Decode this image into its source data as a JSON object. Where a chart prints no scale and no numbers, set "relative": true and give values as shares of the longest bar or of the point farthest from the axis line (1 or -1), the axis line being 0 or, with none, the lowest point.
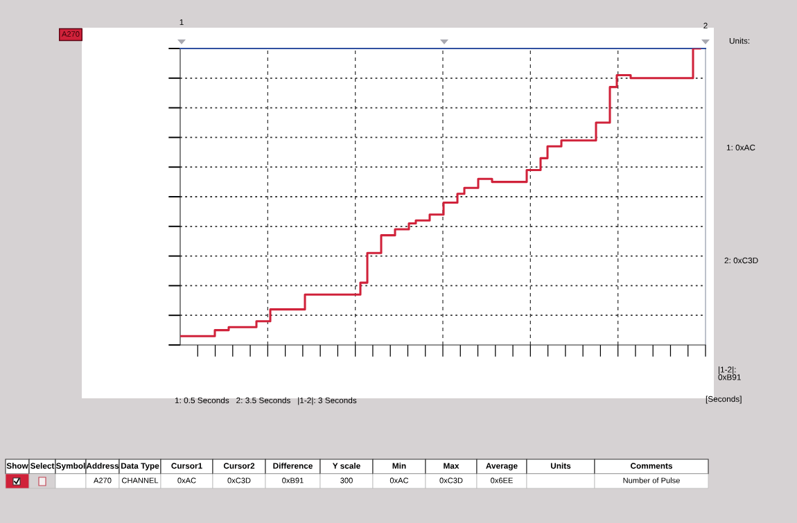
{
  "chart_data": {
    "type": "step",
    "relative": true,
    "grid": true,
    "legend": false,
    "marker": "none",
    "line_style": "solid",
    "tick_labels": false,
    "categories": [
      null,
      null,
      null,
      null,
      null,
      null,
      null,
      null,
      null,
      null,
      null,
      null,
      null,
      null,
      null,
      null,
      null,
      null,
      null,
      null,
      null,
      null,
      null,
      null,
      null,
      null,
      null,
      null,
      null,
      null,
      null,
      null,
      null,
      null,
      null,
      null,
      null,
      null,
      null,
      null,
      null,
      null,
      null,
      null,
      null,
      null,
      null,
      null,
      null,
      null,
      null,
      null,
      null,
      null,
      null,
      null,
      null,
      null,
      null,
      null,
      null,
      null,
      null,
      null,
      null,
      null,
      null,
      null,
      null,
      null,
      null,
      null,
      null,
      null,
      null,
      null
    ],
    "series": [
      {
        "name": "A270",
        "color": "#d0223a",
        "values": [
          0.03,
          0.03,
          0.03,
          0.03,
          0.03,
          0.05,
          0.05,
          0.06,
          0.06,
          0.06,
          0.06,
          0.08,
          0.08,
          0.12,
          0.12,
          0.12,
          0.12,
          0.12,
          0.17,
          0.17,
          0.17,
          0.17,
          0.17,
          0.17,
          0.17,
          0.17,
          0.21,
          0.31,
          0.31,
          0.37,
          0.37,
          0.39,
          0.39,
          0.41,
          0.42,
          0.42,
          0.44,
          0.44,
          0.48,
          0.48,
          0.51,
          0.53,
          0.53,
          0.56,
          0.56,
          0.55,
          0.55,
          0.55,
          0.55,
          0.55,
          0.59,
          0.59,
          0.63,
          0.67,
          0.67,
          0.69,
          0.69,
          0.69,
          0.69,
          0.69,
          0.75,
          0.75,
          0.87,
          0.91,
          0.91,
          0.9,
          0.9,
          0.9,
          0.9,
          0.9,
          0.9,
          0.9,
          0.9,
          0.9,
          1,
          1
        ]
      }
    ],
    "annotations": [
      "1",
      "2",
      "Units:",
      "1: 0xAC",
      "2: 0xC3D",
      "|1-2|:\n0xB91",
      "1: 0.5 Seconds   2: 3.5 Seconds   |1-2|: 3 Seconds",
      "[Seconds]",
      "Show",
      "Select",
      "Symbol",
      "Address",
      "Data Type",
      "Cursor1",
      "Cursor2",
      "Difference",
      "Y scale",
      "Min",
      "Max",
      "Average",
      "Units",
      "Comments",
      "A270",
      "CHANNEL",
      "0xAC",
      "0xC3D",
      "0xB91",
      "300",
      "0xAC",
      "0xC3D",
      "0x6EE",
      "Number of Pulse"
    ]
  }
}
